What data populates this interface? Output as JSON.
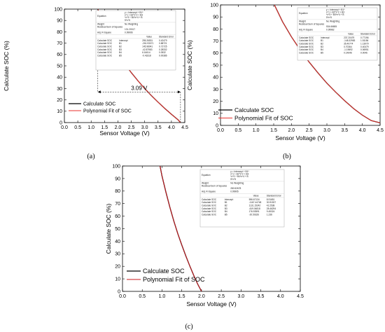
{
  "chart_data": [
    {
      "panel": "(a)",
      "type": "line",
      "xlabel": "Sensor Voltage (V)",
      "ylabel": "Calculate SOC (%)",
      "xlim": [
        0.0,
        4.5
      ],
      "ylim": [
        0,
        100
      ],
      "xticks": [
        "0.0",
        "0.5",
        "1.0",
        "1.5",
        "2.0",
        "2.5",
        "3.0",
        "3.5",
        "4.0",
        "4.5"
      ],
      "yticks": [
        "0",
        "10",
        "20",
        "30",
        "40",
        "50",
        "60",
        "70",
        "80",
        "90",
        "100"
      ],
      "legend_position": "bottom-left",
      "series": [
        {
          "name": "Calculate SOC",
          "color": "#000000",
          "x": [
            1.25,
            1.5,
            1.75,
            2.0,
            2.25,
            2.5,
            2.75,
            3.0,
            3.25,
            3.5,
            3.75,
            4.0,
            4.25,
            4.34
          ],
          "y": [
            100,
            84.0,
            71.5,
            61.0,
            52.0,
            44.0,
            36.8,
            30.0,
            23.8,
            18.0,
            12.5,
            7.3,
            2.4,
            0
          ]
        },
        {
          "name": "Polynomial Fit of SOC",
          "color": "#e8322d",
          "x": [
            1.25,
            1.5,
            1.75,
            2.0,
            2.25,
            2.5,
            2.75,
            3.0,
            3.25,
            3.5,
            3.75,
            4.0,
            4.25,
            4.34
          ],
          "y": [
            100,
            84.0,
            71.5,
            61.0,
            52.0,
            44.0,
            36.8,
            30.0,
            23.8,
            18.0,
            12.5,
            7.3,
            2.4,
            0
          ]
        }
      ],
      "annotation": {
        "text": "3.09 V",
        "x_start": 1.25,
        "x_end": 4.34,
        "y": 27
      },
      "fit_table": {
        "equation_label": "Equation",
        "equation_lines": [
          "y = Intercept + B1*",
          "x^1 + B2*x^2 + B3",
          "*x^3 + B4*x^4 + B",
          "5*x^5"
        ],
        "weight_label": "Weight",
        "weight_value": "No Weighting",
        "rss_label": "Residual Sum of Squares",
        "rss_value": "131.20017",
        "r2_label": "Adj. R-Square",
        "r2_value": "0.99996",
        "col_value": "Value",
        "col_error": "Standard Error",
        "rows": [
          {
            "series": "Calculate SOC",
            "param": "Intercept",
            "value": "295.26531",
            "error": "0.42479"
          },
          {
            "series": "Calculate SOC",
            "param": "B1",
            "value": "-261.93071",
            "error": "0.88721"
          },
          {
            "series": "Calculate SOC",
            "param": "B2",
            "value": "145.98041",
            "error": "0.72725"
          },
          {
            "series": "Calculate SOC",
            "param": "B3",
            "value": "-42.87983",
            "error": "0.28332"
          },
          {
            "series": "Calculate SOC",
            "param": "B4",
            "value": "6.16614",
            "error": "0.0532"
          },
          {
            "series": "Calculate SOC",
            "param": "B5",
            "value": "-0.43318",
            "error": "0.00386"
          }
        ]
      }
    },
    {
      "panel": "(b)",
      "type": "line",
      "xlabel": "Sensor Voltage (V)",
      "ylabel": "Calculate SOC (%)",
      "xlim": [
        0.0,
        4.5
      ],
      "ylim": [
        0,
        100
      ],
      "xticks": [
        "0.0",
        "0.5",
        "1.0",
        "1.5",
        "2.0",
        "2.5",
        "3.0",
        "3.5",
        "4.0",
        "4.5"
      ],
      "yticks": [
        "0",
        "10",
        "20",
        "30",
        "40",
        "50",
        "60",
        "70",
        "80",
        "90",
        "100"
      ],
      "legend_position": "bottom-left",
      "series": [
        {
          "name": "Calculate SOC",
          "color": "#000000",
          "x": [
            1.52,
            1.75,
            2.0,
            2.25,
            2.5,
            2.75,
            3.0,
            3.25,
            3.5,
            3.75,
            4.0,
            4.25,
            4.45,
            4.5
          ],
          "y": [
            100,
            86.0,
            73.5,
            62.5,
            52.5,
            43.5,
            35.0,
            27.5,
            20.5,
            14.0,
            8.5,
            4.0,
            2.5,
            2.0
          ]
        },
        {
          "name": "Polynomial Fit of SOC",
          "color": "#e8322d",
          "x": [
            1.52,
            1.75,
            2.0,
            2.25,
            2.5,
            2.75,
            3.0,
            3.25,
            3.5,
            3.75,
            4.0,
            4.25,
            4.45,
            4.5
          ],
          "y": [
            100,
            86.0,
            73.5,
            62.5,
            52.5,
            43.5,
            35.0,
            27.5,
            20.5,
            14.0,
            8.5,
            4.0,
            2.5,
            2.0
          ]
        }
      ],
      "fit_table": {
        "equation_label": "Equation",
        "equation_lines": [
          "y = Intercept + B1*",
          "x^1 + B2*x^2 + B3",
          "*x^3 + B4*x^4 + B",
          "5*x^5"
        ],
        "weight_label": "Weight",
        "weight_value": "No Weighting",
        "rss_label": "Residual Sum of Squares",
        "rss_value": "534.66655",
        "r2_label": "Adj. R-Square",
        "r2_value": "0.99982",
        "col_value": "Value",
        "col_error": "Standard Error",
        "rows": [
          {
            "series": "Calculate SOC",
            "param": "Intercept",
            "value": "237.20479",
            "error": "0.77196"
          },
          {
            "series": "Calculate SOC",
            "param": "B1",
            "value": "-148.32983",
            "error": "1.51156"
          },
          {
            "series": "Calculate SOC",
            "param": "B2",
            "value": "35.40774",
            "error": "1.13079"
          },
          {
            "series": "Calculate SOC",
            "param": "B3",
            "value": "0.70364",
            "error": "0.40479"
          },
          {
            "series": "Calculate SOC",
            "param": "B4",
            "value": "-1.19692",
            "error": "0.06951"
          },
          {
            "series": "Calculate SOC",
            "param": "B5",
            "value": "0.14646",
            "error": "0.0046"
          }
        ]
      }
    },
    {
      "panel": "(c)",
      "type": "line",
      "xlabel": "Sensor Voltage (V)",
      "ylabel": "Calculate SOC (%)",
      "xlim": [
        0.0,
        4.5
      ],
      "ylim": [
        0,
        100
      ],
      "xticks": [
        "0.0",
        "0.5",
        "1.0",
        "1.5",
        "2.0",
        "2.5",
        "3.0",
        "3.5",
        "4.0",
        "4.5"
      ],
      "yticks": [
        "0",
        "10",
        "20",
        "30",
        "40",
        "50",
        "60",
        "70",
        "80",
        "90",
        "100"
      ],
      "legend_position": "bottom-left",
      "series": [
        {
          "name": "Calculate SOC",
          "color": "#000000",
          "x": [
            0.95,
            1.0,
            1.1,
            1.2,
            1.3,
            1.4,
            1.5,
            1.6,
            1.7,
            1.8,
            1.9,
            2.0
          ],
          "y": [
            100,
            92.0,
            79.0,
            67.0,
            56.0,
            46.0,
            37.0,
            28.5,
            20.5,
            13.0,
            6.0,
            0
          ]
        },
        {
          "name": "Polynomial Fit of SOC",
          "color": "#c8181d",
          "x": [
            0.95,
            1.0,
            1.1,
            1.2,
            1.3,
            1.4,
            1.5,
            1.6,
            1.7,
            1.8,
            1.9,
            2.0
          ],
          "y": [
            100,
            92.0,
            79.0,
            67.0,
            56.0,
            46.0,
            37.0,
            28.5,
            20.5,
            13.0,
            6.0,
            0
          ]
        }
      ],
      "fit_table": {
        "equation_label": "Equation",
        "equation_lines": [
          "y = Intercept + B1*",
          "x^1 + B2*x^2 + B3",
          "*x^3 + B4*x^4 + B",
          "5*x^5"
        ],
        "weight_label": "Weight",
        "weight_value": "No Weighting",
        "rss_label": "Residual Sum of Squares",
        "rss_value": "280.52678",
        "r2_label": "Adj. R-Square",
        "r2_value": "0.99995",
        "col_value": "Value",
        "col_error": "Standard Error",
        "rows": [
          {
            "series": "Calculate SOC",
            "param": "Intercept",
            "value": "596.67134",
            "error": "8.91651"
          },
          {
            "series": "Calculate SOC",
            "param": "B1",
            "value": "-1167.44748",
            "error": "30.91537"
          },
          {
            "series": "Calculate SOC",
            "param": "B2",
            "value": "1131.15242",
            "error": "42.2538"
          },
          {
            "series": "Calculate SOC",
            "param": "B3",
            "value": "-619.04818",
            "error": "28.46294"
          },
          {
            "series": "Calculate SOC",
            "param": "B4",
            "value": "176.53591",
            "error": "9.45324"
          },
          {
            "series": "Calculate SOC",
            "param": "B5",
            "value": "-20.50326",
            "error": "1.236"
          }
        ]
      }
    }
  ]
}
